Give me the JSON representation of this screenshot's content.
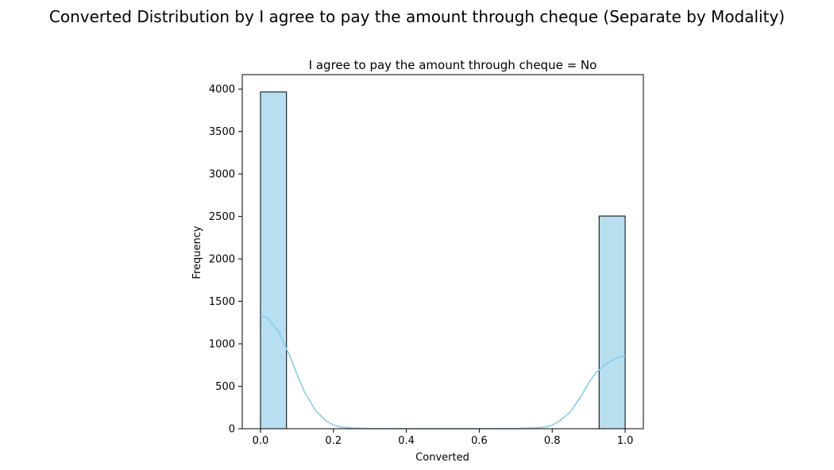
{
  "chart_data": {
    "type": "bar",
    "suptitle": "Converted Distribution by I agree to pay the amount through cheque (Separate by Modality)",
    "title": "I agree to pay the amount through cheque = No",
    "xlabel": "Converted",
    "ylabel": "Frequency",
    "xlim": [
      -0.05,
      1.05
    ],
    "ylim": [
      0,
      4170
    ],
    "xticks": [
      "0.0",
      "0.2",
      "0.4",
      "0.6",
      "0.8",
      "1.0"
    ],
    "xtick_values": [
      0.0,
      0.2,
      0.4,
      0.6,
      0.8,
      1.0
    ],
    "yticks": [
      "0",
      "500",
      "1000",
      "1500",
      "2000",
      "2500",
      "3000",
      "3500",
      "4000"
    ],
    "ytick_values": [
      0,
      500,
      1000,
      1500,
      2000,
      2500,
      3000,
      3500,
      4000
    ],
    "bins": [
      {
        "start": 0.0,
        "end": 0.0714,
        "count": 3966
      },
      {
        "start": 0.9286,
        "end": 1.0,
        "count": 2505
      }
    ],
    "kde": {
      "x": [
        0.0,
        0.02,
        0.05,
        0.08,
        0.1,
        0.12,
        0.15,
        0.18,
        0.2,
        0.22,
        0.25,
        0.3,
        0.4,
        0.5,
        0.6,
        0.7,
        0.75,
        0.78,
        0.8,
        0.82,
        0.85,
        0.88,
        0.9,
        0.92,
        0.95,
        0.98,
        1.0
      ],
      "y": [
        1340,
        1300,
        1140,
        860,
        640,
        440,
        220,
        90,
        45,
        20,
        8,
        2,
        0,
        0,
        0,
        2,
        8,
        20,
        40,
        90,
        200,
        390,
        540,
        660,
        770,
        840,
        855
      ]
    },
    "grid": false,
    "colors": {
      "bar_fill": "#b7dff0",
      "bar_edge": "#000000",
      "kde_line": "#87ceeb"
    }
  }
}
